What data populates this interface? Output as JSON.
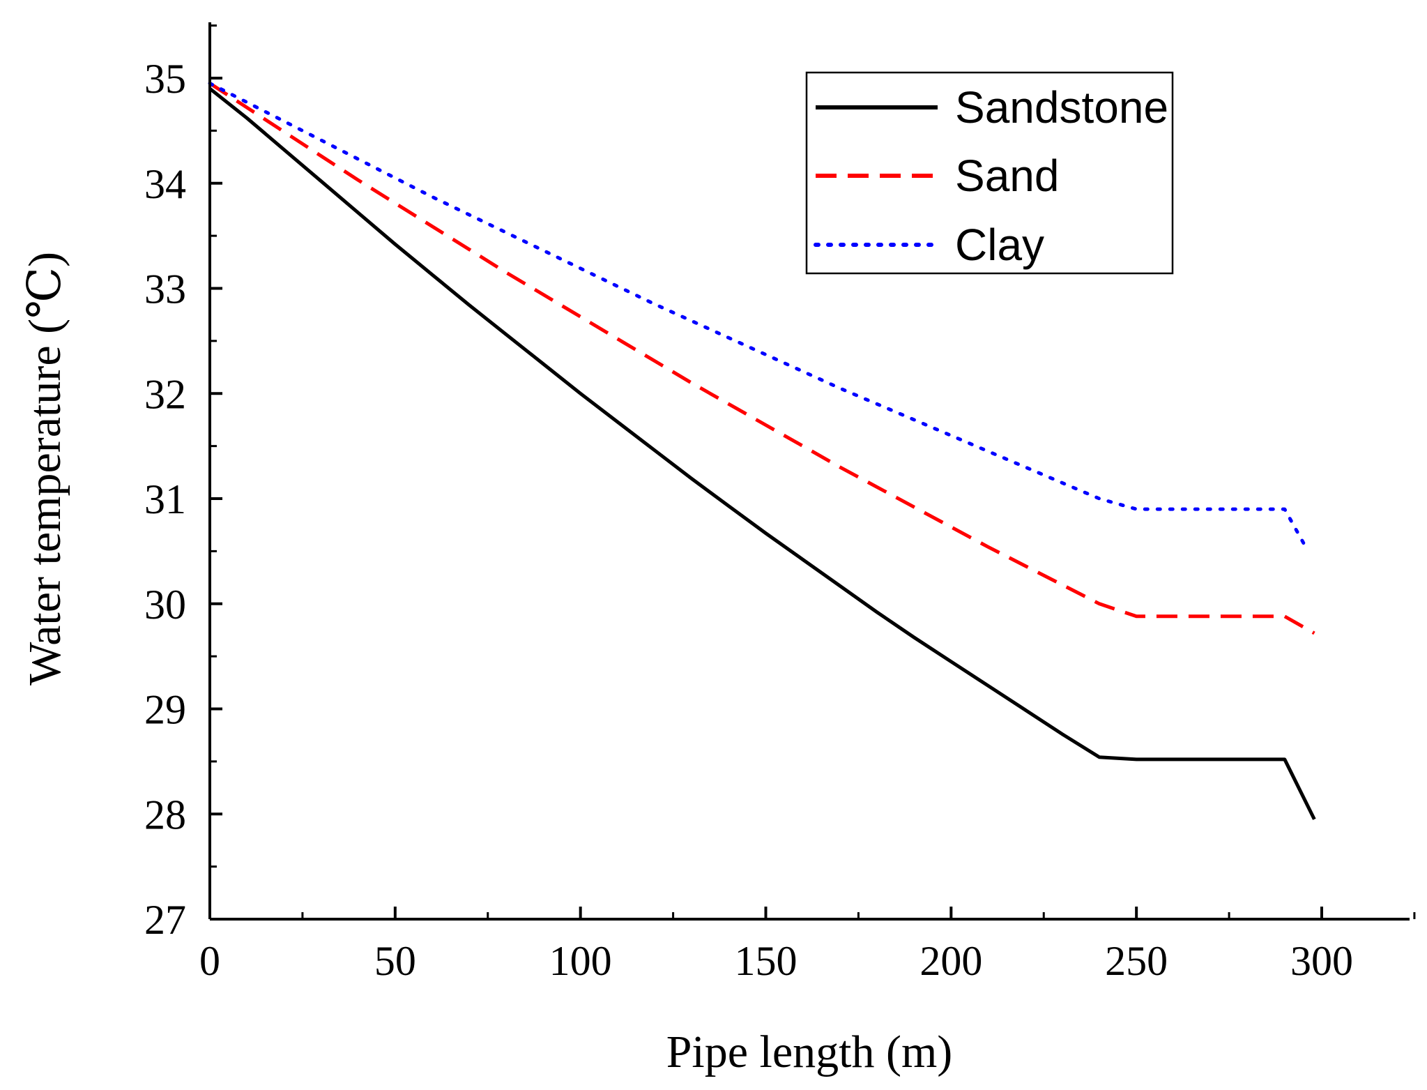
{
  "chart_data": {
    "type": "line",
    "title": "",
    "xlabel": "Pipe length (m)",
    "ylabel": "Water temperature (℃)",
    "xlim": [
      0,
      325
    ],
    "ylim": [
      27,
      35.5
    ],
    "x_ticks": [
      "0",
      "50",
      "100",
      "150",
      "200",
      "250",
      "300"
    ],
    "y_ticks": [
      "27",
      "28",
      "29",
      "30",
      "31",
      "32",
      "33",
      "34",
      "35"
    ],
    "legend_position": "top-right",
    "grid": false,
    "series": [
      {
        "name": "Sandstone",
        "color": "#000000",
        "style": "solid",
        "x": [
          0,
          10,
          20,
          30,
          40,
          50,
          60,
          70,
          80,
          90,
          100,
          110,
          120,
          130,
          140,
          150,
          160,
          170,
          180,
          190,
          200,
          210,
          220,
          230,
          240,
          250,
          260,
          270,
          280,
          290,
          298
        ],
        "y": [
          34.9,
          34.62,
          34.32,
          34.02,
          33.72,
          33.42,
          33.13,
          32.84,
          32.56,
          32.28,
          32.0,
          31.73,
          31.46,
          31.19,
          30.93,
          30.67,
          30.42,
          30.17,
          29.92,
          29.68,
          29.45,
          29.22,
          28.99,
          28.76,
          28.54,
          28.52,
          28.52,
          28.52,
          28.52,
          28.52,
          27.95
        ]
      },
      {
        "name": "Sand",
        "color": "#ff0000",
        "style": "dashed",
        "x": [
          0,
          10,
          20,
          30,
          40,
          50,
          60,
          70,
          80,
          90,
          100,
          110,
          120,
          130,
          140,
          150,
          160,
          170,
          180,
          190,
          200,
          210,
          220,
          230,
          240,
          250,
          260,
          270,
          280,
          290,
          298
        ],
        "y": [
          34.95,
          34.72,
          34.49,
          34.26,
          34.03,
          33.81,
          33.59,
          33.37,
          33.15,
          32.94,
          32.73,
          32.52,
          32.31,
          32.1,
          31.9,
          31.7,
          31.5,
          31.3,
          31.11,
          30.92,
          30.73,
          30.54,
          30.36,
          30.18,
          30.0,
          29.88,
          29.88,
          29.88,
          29.88,
          29.88,
          29.72
        ]
      },
      {
        "name": "Clay",
        "color": "#0000ff",
        "style": "dotted",
        "x": [
          0,
          10,
          20,
          30,
          40,
          50,
          60,
          70,
          80,
          90,
          100,
          110,
          120,
          130,
          140,
          150,
          160,
          170,
          180,
          190,
          200,
          210,
          220,
          230,
          240,
          250,
          260,
          270,
          280,
          290,
          296
        ],
        "y": [
          34.95,
          34.77,
          34.59,
          34.41,
          34.23,
          34.05,
          33.87,
          33.7,
          33.53,
          33.36,
          33.19,
          33.02,
          32.85,
          32.69,
          32.53,
          32.37,
          32.21,
          32.05,
          31.9,
          31.75,
          31.6,
          31.45,
          31.3,
          31.15,
          31.0,
          30.9,
          30.9,
          30.9,
          30.9,
          30.9,
          30.52
        ]
      }
    ]
  }
}
